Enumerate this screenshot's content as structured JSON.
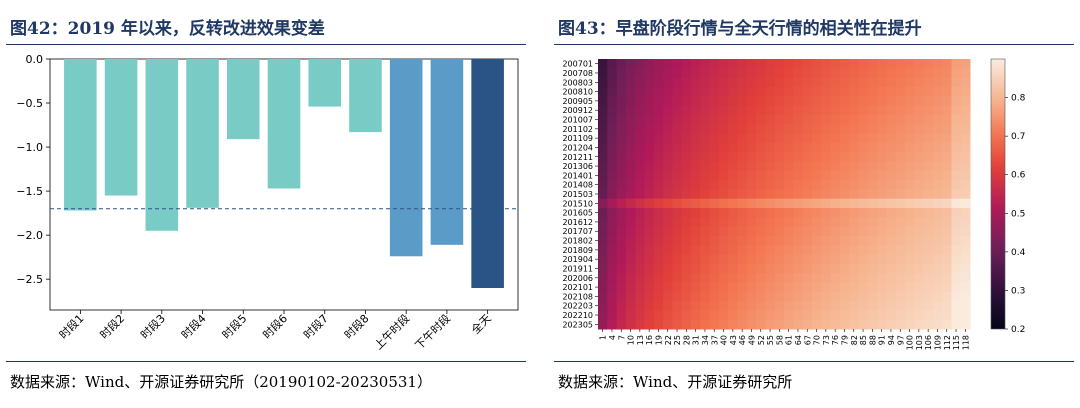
{
  "left_panel": {
    "title": "图42：2019 年以来，反转改进效果变差",
    "source": "数据来源：Wind、开源证券研究所（20190102-20230531）"
  },
  "right_panel": {
    "title": "图43：早盘阶段行情与全天行情的相关性在提升",
    "source": "数据来源：Wind、开源证券研究所"
  },
  "chart_data": [
    {
      "type": "bar",
      "categories": [
        "时段1",
        "时段2",
        "时段3",
        "时段4",
        "时段5",
        "时段6",
        "时段7",
        "时段8",
        "上午时段",
        "下午时段",
        "全天"
      ],
      "values": [
        -1.72,
        -1.55,
        -1.95,
        -1.69,
        -0.91,
        -1.47,
        -0.54,
        -0.83,
        -2.24,
        -2.11,
        -2.6
      ],
      "colors": [
        "#79cbc6",
        "#79cbc6",
        "#79cbc6",
        "#79cbc6",
        "#79cbc6",
        "#79cbc6",
        "#79cbc6",
        "#79cbc6",
        "#5b9bc8",
        "#5b9bc8",
        "#2a5486"
      ],
      "yticks": [
        0.0,
        -0.5,
        -1.0,
        -1.5,
        -2.0,
        -2.5
      ],
      "ytick_labels": [
        "0.0",
        "−0.5",
        "−1.0",
        "−1.5",
        "−2.0",
        "−2.5"
      ],
      "ylim": [
        -2.85,
        0.0
      ],
      "reference_line": {
        "value": -1.7,
        "style": "dashed",
        "color": "#2a5486"
      },
      "grid": false
    },
    {
      "type": "heatmap",
      "y_labels": [
        "200701",
        "200708",
        "200803",
        "200810",
        "200905",
        "200912",
        "201007",
        "201102",
        "201109",
        "201204",
        "201211",
        "201306",
        "201401",
        "201408",
        "201503",
        "201510",
        "201605",
        "201612",
        "201707",
        "201802",
        "201809",
        "201904",
        "201911",
        "202006",
        "202101",
        "202108",
        "202203",
        "202210",
        "202305"
      ],
      "x_labels": [
        "1",
        "4",
        "7",
        "10",
        "13",
        "16",
        "19",
        "22",
        "25",
        "28",
        "31",
        "34",
        "37",
        "40",
        "43",
        "46",
        "49",
        "52",
        "55",
        "58",
        "61",
        "64",
        "67",
        "70",
        "73",
        "76",
        "79",
        "82",
        "85",
        "88",
        "91",
        "94",
        "97",
        "100",
        "103",
        "106",
        "109",
        "112",
        "115",
        "118"
      ],
      "colorbar": {
        "min": 0.2,
        "max": 0.9,
        "ticks": [
          "0.8",
          "0.7",
          "0.6",
          "0.5",
          "0.4",
          "0.3",
          "0.2"
        ]
      },
      "colormap": "rocket",
      "note": "correlation rises with x (minutes into session) and with later dates; horizontal bright band near 201510"
    }
  ]
}
